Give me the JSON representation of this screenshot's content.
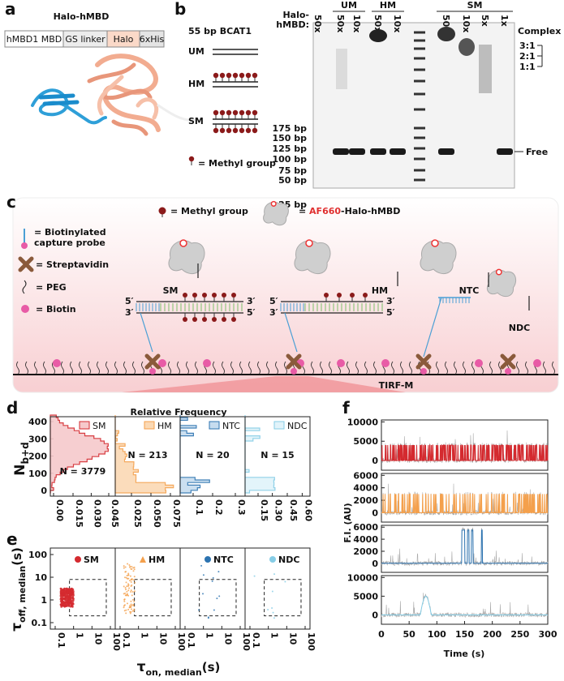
{
  "panel_a": {
    "label": "a",
    "title": "Halo-hMBD",
    "segments": [
      "hMBD1 MBD",
      "GS linker",
      "Halo",
      "6xHis"
    ]
  },
  "panel_b": {
    "label": "b",
    "construct": "55 bp BCAT1",
    "dna_types": [
      "UM",
      "HM",
      "SM"
    ],
    "methyl_legend": "= Methyl group",
    "enzyme_label": [
      "Halo-",
      "hMBD:"
    ],
    "lane_groups": [
      "UM",
      "HM",
      "SM"
    ],
    "lanes": [
      "50x",
      "50x",
      "10x",
      "50x",
      "10x",
      "50x",
      "10x",
      "5x",
      "1x"
    ],
    "ladder": [
      "175 bp",
      "150 bp",
      "125 bp",
      "100 bp",
      "75 bp",
      "50 bp",
      "25 bp"
    ],
    "complex_label": "Complex",
    "ratios": [
      "3:1",
      "2:1",
      "1:1"
    ],
    "free_label": "Free"
  },
  "panel_c": {
    "label": "c",
    "methyl_legend": "= Methyl group",
    "probe_legend": [
      "= ",
      "AF660",
      "-Halo-hMBD"
    ],
    "capture_legend": [
      "= Biotinylated",
      "capture probe"
    ],
    "streptavidin_legend": "= Streptavidin",
    "peg_legend": "= PEG",
    "biotin_legend": "= Biotin",
    "conditions": [
      "SM",
      "HM",
      "NTC",
      "NDC"
    ],
    "strand_ends": [
      "5′",
      "3′"
    ],
    "microscope": "TIRF-M"
  },
  "panel_d": {
    "label": "d",
    "title": "Relative Frequency",
    "y_label": [
      "N",
      "b+d"
    ],
    "yticks": [
      0,
      100,
      200,
      300,
      400
    ],
    "subplots": [
      {
        "n_label": "N = 3779",
        "xticks": [
          "0.00",
          "0.015",
          "0.030",
          "0.045"
        ]
      },
      {
        "n_label": "N = 213",
        "xticks": [
          "0.025",
          "0.050",
          "0.075"
        ]
      },
      {
        "n_label": "N = 20",
        "xticks": [
          0.1,
          0.2,
          0.3
        ]
      },
      {
        "n_label": "N = 15",
        "xticks": [
          0.15,
          "0.30",
          0.45,
          "0.60"
        ]
      }
    ]
  },
  "panel_e": {
    "label": "e",
    "y_label": [
      "τ",
      "off, median",
      "(s)"
    ],
    "x_label": [
      "τ",
      "on, median",
      "(s)"
    ],
    "ticks": [
      0.1,
      1,
      10,
      100
    ]
  },
  "panel_f": {
    "label": "f",
    "y_label": "F.I. (AU)",
    "x_label": "Time (s)",
    "xticks": [
      0,
      50,
      100,
      150,
      200,
      250,
      300
    ],
    "rows": [
      {
        "yticks": [
          0,
          5000,
          10000
        ]
      },
      {
        "yticks": [
          0,
          2000,
          4000,
          6000
        ]
      },
      {
        "yticks": [
          0,
          2000,
          4000,
          6000
        ]
      },
      {
        "yticks": [
          0,
          5000,
          10000
        ]
      }
    ]
  }
}
